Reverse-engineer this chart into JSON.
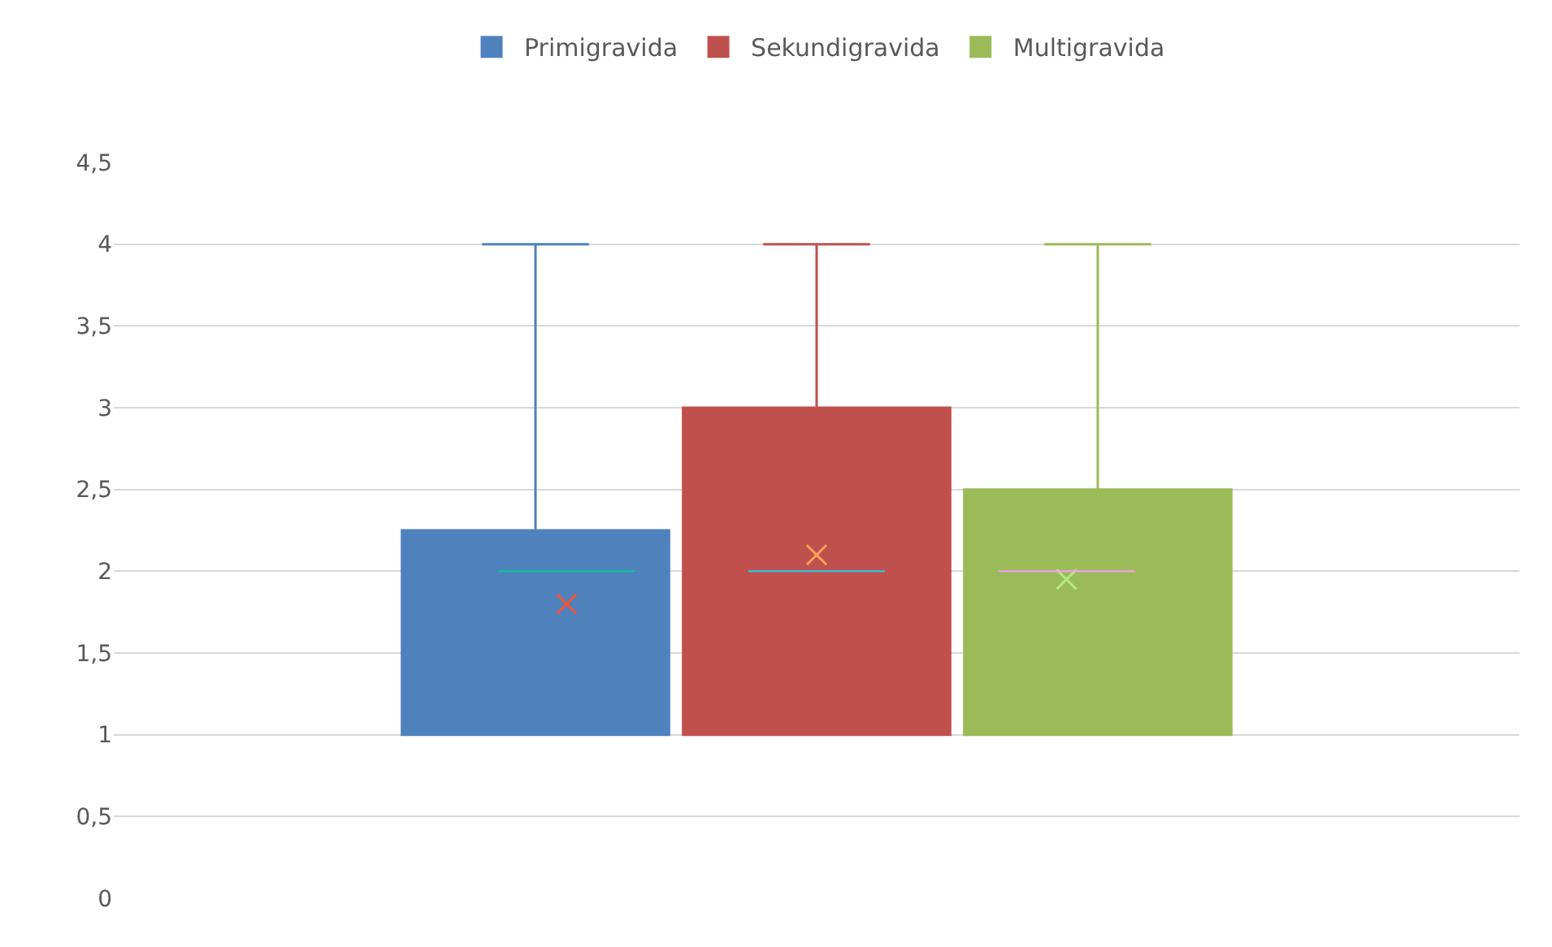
{
  "chart_data": {
    "type": "box",
    "categories": [
      null
    ],
    "series": [
      {
        "name": "Primigravida",
        "color": "#4f81bd",
        "boxes": [
          {
            "low": 1,
            "q1": 1,
            "median": 2,
            "q3": 2.25,
            "high": 4,
            "mean": 1.8
          }
        ]
      },
      {
        "name": "Sekundigravida",
        "color": "#c0504d",
        "boxes": [
          {
            "low": 1,
            "q1": 1,
            "median": 2,
            "q3": 3,
            "high": 4,
            "mean": 2.1
          }
        ]
      },
      {
        "name": "Multigravida",
        "color": "#9bbb59",
        "boxes": [
          {
            "low": 1,
            "q1": 1,
            "median": 2,
            "q3": 2.5,
            "high": 4,
            "mean": 1.95
          }
        ]
      }
    ],
    "ylim": [
      0,
      4.5
    ],
    "yticks": [
      0,
      {
        "value": 0.5,
        "label": "0,5"
      },
      1,
      {
        "value": 1.5,
        "label": "1,5"
      },
      2,
      {
        "value": 2.5,
        "label": "2,5"
      },
      3,
      {
        "value": 3.5,
        "label": "3,5"
      },
      4,
      {
        "value": 4.5,
        "label": "4,5"
      }
    ],
    "grid": "y",
    "legend": "top"
  }
}
